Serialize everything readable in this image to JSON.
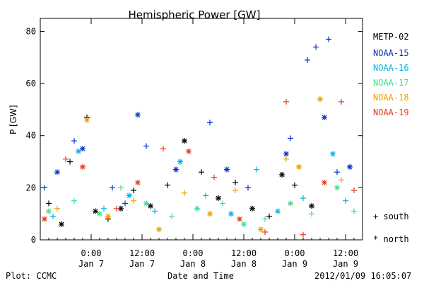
{
  "chart_data": {
    "type": "scatter",
    "title": "Hemispheric Power [GW]",
    "xlabel": "Date and Time",
    "ylabel": "P [GW]",
    "ylim": [
      0,
      85
    ],
    "yticks": [
      0,
      20,
      40,
      60,
      80
    ],
    "xlim": [
      "2012-01-06 12:00",
      "2012-01-09 16:00"
    ],
    "xticks": [
      {
        "x": "2012-01-07 00:00",
        "time": "0:00",
        "date": "Jan 7"
      },
      {
        "x": "2012-01-07 12:00",
        "time": "12:00",
        "date": "Jan 7"
      },
      {
        "x": "2012-01-08 00:00",
        "time": "0:00",
        "date": "Jan 8"
      },
      {
        "x": "2012-01-08 12:00",
        "time": "12:00",
        "date": "Jan 8"
      },
      {
        "x": "2012-01-09 00:00",
        "time": "0:00",
        "date": "Jan 9"
      },
      {
        "x": "2012-01-09 12:00",
        "time": "12:00",
        "date": "Jan 9"
      }
    ],
    "grid": false,
    "legend_position": "right",
    "marker_legend": [
      {
        "symbol": "+",
        "label": "south"
      },
      {
        "symbol": "*",
        "label": "north"
      }
    ],
    "series": [
      {
        "name": "METP-02",
        "color": "#000000",
        "points": [
          [
            "2012-01-06 14:00",
            14,
            "+"
          ],
          [
            "2012-01-06 17:00",
            6,
            "*"
          ],
          [
            "2012-01-06 19:00",
            30,
            "+"
          ],
          [
            "2012-01-06 23:00",
            47,
            "+"
          ],
          [
            "2012-01-07 01:00",
            11,
            "*"
          ],
          [
            "2012-01-07 04:00",
            8,
            "+"
          ],
          [
            "2012-01-07 07:00",
            12,
            "*"
          ],
          [
            "2012-01-07 10:00",
            19,
            "+"
          ],
          [
            "2012-01-07 14:00",
            13,
            "*"
          ],
          [
            "2012-01-07 18:00",
            21,
            "+"
          ],
          [
            "2012-01-07 22:00",
            38,
            "*"
          ],
          [
            "2012-01-08 02:00",
            26,
            "+"
          ],
          [
            "2012-01-08 06:00",
            16,
            "*"
          ],
          [
            "2012-01-08 10:00",
            22,
            "+"
          ],
          [
            "2012-01-08 14:00",
            12,
            "*"
          ],
          [
            "2012-01-08 18:00",
            9,
            "+"
          ],
          [
            "2012-01-08 21:00",
            25,
            "*"
          ],
          [
            "2012-01-09 00:00",
            21,
            "+"
          ],
          [
            "2012-01-09 04:00",
            13,
            "*"
          ]
        ]
      },
      {
        "name": "NOAA-15",
        "color": "#0033cc",
        "points": [
          [
            "2012-01-06 13:00",
            20,
            "+"
          ],
          [
            "2012-01-06 16:00",
            26,
            "*"
          ],
          [
            "2012-01-06 20:00",
            38,
            "+"
          ],
          [
            "2012-01-06 22:00",
            35,
            "*"
          ],
          [
            "2012-01-07 05:00",
            20,
            "+"
          ],
          [
            "2012-01-07 08:00",
            14,
            "+"
          ],
          [
            "2012-01-07 11:00",
            48,
            "*"
          ],
          [
            "2012-01-07 13:00",
            36,
            "+"
          ],
          [
            "2012-01-07 20:00",
            27,
            "*"
          ],
          [
            "2012-01-08 04:00",
            45,
            "+"
          ],
          [
            "2012-01-08 08:00",
            27,
            "*"
          ],
          [
            "2012-01-08 13:00",
            20,
            "+"
          ],
          [
            "2012-01-08 22:00",
            33,
            "*"
          ],
          [
            "2012-01-08 23:00",
            39,
            "+"
          ],
          [
            "2012-01-09 03:00",
            69,
            "+"
          ],
          [
            "2012-01-09 05:00",
            74,
            "+"
          ],
          [
            "2012-01-09 07:00",
            47,
            "*"
          ],
          [
            "2012-01-09 08:00",
            77,
            "+"
          ],
          [
            "2012-01-09 10:00",
            26,
            "+"
          ],
          [
            "2012-01-09 13:00",
            28,
            "*"
          ]
        ]
      },
      {
        "name": "NOAA-16",
        "color": "#00b4e6",
        "points": [
          [
            "2012-01-06 15:00",
            9,
            "+"
          ],
          [
            "2012-01-06 21:00",
            34,
            "*"
          ],
          [
            "2012-01-07 03:00",
            12,
            "+"
          ],
          [
            "2012-01-07 09:00",
            17,
            "*"
          ],
          [
            "2012-01-07 15:00",
            11,
            "+"
          ],
          [
            "2012-01-07 21:00",
            30,
            "*"
          ],
          [
            "2012-01-08 03:00",
            17,
            "+"
          ],
          [
            "2012-01-08 09:00",
            10,
            "*"
          ],
          [
            "2012-01-08 15:00",
            27,
            "+"
          ],
          [
            "2012-01-08 20:00",
            11,
            "*"
          ],
          [
            "2012-01-09 02:00",
            16,
            "+"
          ],
          [
            "2012-01-09 09:00",
            33,
            "*"
          ],
          [
            "2012-01-09 12:00",
            15,
            "+"
          ]
        ]
      },
      {
        "name": "NOAA-17",
        "color": "#33e68c",
        "points": [
          [
            "2012-01-06 14:00",
            11,
            "*"
          ],
          [
            "2012-01-06 20:00",
            15,
            "+"
          ],
          [
            "2012-01-07 02:00",
            10,
            "*"
          ],
          [
            "2012-01-07 07:00",
            20,
            "+"
          ],
          [
            "2012-01-07 13:00",
            14,
            "*"
          ],
          [
            "2012-01-07 19:00",
            9,
            "+"
          ],
          [
            "2012-01-08 01:00",
            12,
            "*"
          ],
          [
            "2012-01-08 07:00",
            14,
            "+"
          ],
          [
            "2012-01-08 12:00",
            6,
            "*"
          ],
          [
            "2012-01-08 17:00",
            8,
            "+"
          ],
          [
            "2012-01-08 23:00",
            14,
            "*"
          ],
          [
            "2012-01-09 04:00",
            10,
            "+"
          ],
          [
            "2012-01-09 10:00",
            20,
            "*"
          ],
          [
            "2012-01-09 14:00",
            11,
            "+"
          ]
        ]
      },
      {
        "name": "NOAA-18",
        "color": "#f0a000",
        "points": [
          [
            "2012-01-06 16:00",
            12,
            "+"
          ],
          [
            "2012-01-06 23:00",
            46,
            "*"
          ],
          [
            "2012-01-07 04:00",
            9,
            "*"
          ],
          [
            "2012-01-07 10:00",
            15,
            "+"
          ],
          [
            "2012-01-07 16:00",
            4,
            "*"
          ],
          [
            "2012-01-07 22:00",
            18,
            "+"
          ],
          [
            "2012-01-08 04:00",
            10,
            "*"
          ],
          [
            "2012-01-08 10:00",
            19,
            "+"
          ],
          [
            "2012-01-08 16:00",
            4,
            "*"
          ],
          [
            "2012-01-08 22:00",
            31,
            "+"
          ],
          [
            "2012-01-09 01:00",
            28,
            "*"
          ],
          [
            "2012-01-09 06:00",
            54,
            "*"
          ],
          [
            "2012-01-09 11:00",
            23,
            "+"
          ]
        ]
      },
      {
        "name": "NOAA-19",
        "color": "#e63c1e",
        "points": [
          [
            "2012-01-06 13:00",
            8,
            "*"
          ],
          [
            "2012-01-06 18:00",
            31,
            "+"
          ],
          [
            "2012-01-06 22:00",
            28,
            "*"
          ],
          [
            "2012-01-07 06:00",
            12,
            "+"
          ],
          [
            "2012-01-07 11:00",
            22,
            "*"
          ],
          [
            "2012-01-07 17:00",
            35,
            "+"
          ],
          [
            "2012-01-07 23:00",
            34,
            "*"
          ],
          [
            "2012-01-08 05:00",
            24,
            "+"
          ],
          [
            "2012-01-08 11:00",
            8,
            "*"
          ],
          [
            "2012-01-08 17:00",
            3,
            "+"
          ],
          [
            "2012-01-08 22:00",
            53,
            "+"
          ],
          [
            "2012-01-09 02:00",
            2,
            "+"
          ],
          [
            "2012-01-09 07:00",
            22,
            "*"
          ],
          [
            "2012-01-09 11:00",
            53,
            "+"
          ],
          [
            "2012-01-09 14:00",
            19,
            "+"
          ]
        ]
      }
    ]
  },
  "footer": {
    "left": "Plot: CCMC",
    "right": "2012/01/09 16:05:07"
  }
}
